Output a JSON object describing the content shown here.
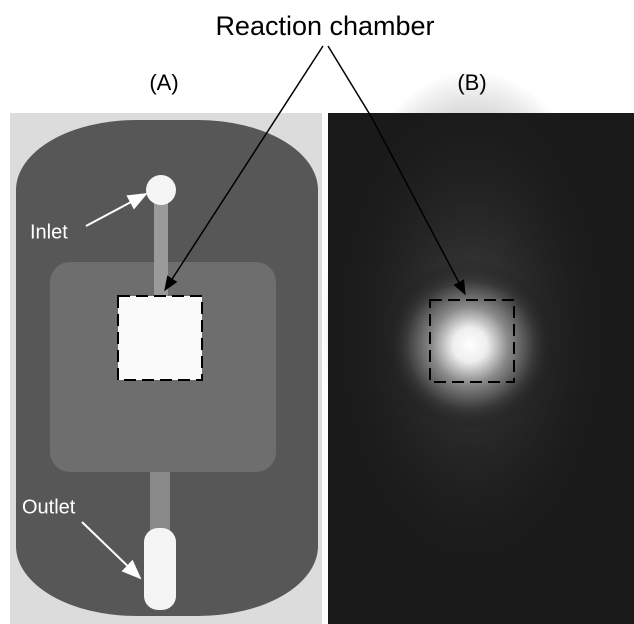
{
  "title": "Reaction chamber",
  "panels": [
    {
      "label": "(A)",
      "annotations": [
        "Inlet",
        "Outlet"
      ]
    },
    {
      "label": "(B)"
    }
  ]
}
